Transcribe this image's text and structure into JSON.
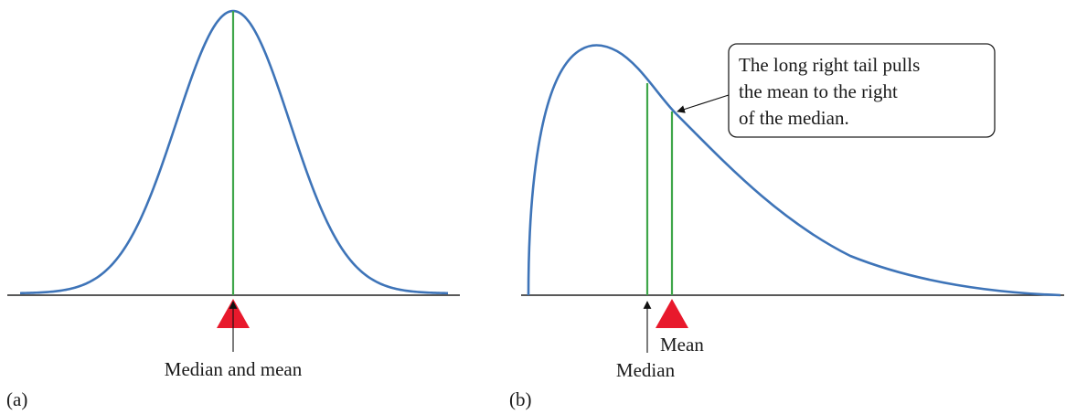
{
  "panel_a": {
    "tag": "(a)",
    "label": "Median and mean"
  },
  "panel_b": {
    "tag": "(b)",
    "median_label": "Median",
    "mean_label": "Mean",
    "callout_lines": [
      "The long right tail pulls",
      "the mean to the right",
      "of the median."
    ]
  },
  "colors": {
    "curve": "#3e74b8",
    "center_lines": "#3fa64a",
    "mean_marker": "#e8192c"
  }
}
